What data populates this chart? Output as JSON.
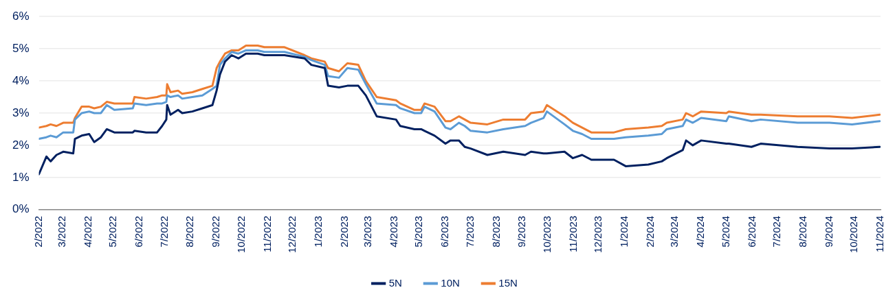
{
  "chart_data": {
    "type": "line",
    "x": [
      "2022-02-01",
      "2022-02-10",
      "2022-02-15",
      "2022-02-22",
      "2022-03-02",
      "2022-03-14",
      "2022-03-16",
      "2022-03-24",
      "2022-04-02",
      "2022-04-08",
      "2022-04-16",
      "2022-04-23",
      "2022-05-02",
      "2022-05-24",
      "2022-05-26",
      "2022-06-09",
      "2022-06-22",
      "2022-06-28",
      "2022-07-03",
      "2022-07-04",
      "2022-07-08",
      "2022-07-17",
      "2022-07-22",
      "2022-08-03",
      "2022-08-15",
      "2022-08-27",
      "2022-09-01",
      "2022-09-05",
      "2022-09-11",
      "2022-09-19",
      "2022-09-27",
      "2022-10-06",
      "2022-10-20",
      "2022-10-28",
      "2022-11-21",
      "2022-12-15",
      "2022-12-23",
      "2023-01-08",
      "2023-01-12",
      "2023-01-25",
      "2023-02-04",
      "2023-02-17",
      "2023-02-26",
      "2023-03-11",
      "2023-04-03",
      "2023-04-08",
      "2023-04-25",
      "2023-05-03",
      "2023-05-07",
      "2023-05-19",
      "2023-06-01",
      "2023-06-07",
      "2023-06-17",
      "2023-06-24",
      "2023-07-01",
      "2023-07-21",
      "2023-08-09",
      "2023-09-04",
      "2023-09-11",
      "2023-09-26",
      "2023-09-30",
      "2023-10-21",
      "2023-10-31",
      "2023-11-11",
      "2023-11-22",
      "2023-12-19",
      "2024-01-02",
      "2024-01-29",
      "2024-02-14",
      "2024-02-20",
      "2024-03-10",
      "2024-03-14",
      "2024-03-22",
      "2024-04-01",
      "2024-05-01",
      "2024-05-04",
      "2024-05-31",
      "2024-06-11",
      "2024-07-25",
      "2024-09-01",
      "2024-09-28",
      "2024-10-31"
    ],
    "series": [
      {
        "name": "5N",
        "color": "#002060",
        "values": [
          1.1,
          1.65,
          1.5,
          1.7,
          1.8,
          1.75,
          2.2,
          2.3,
          2.35,
          2.1,
          2.25,
          2.5,
          2.4,
          2.4,
          2.45,
          2.4,
          2.4,
          2.6,
          2.8,
          3.25,
          2.95,
          3.1,
          3.0,
          3.05,
          3.15,
          3.25,
          3.7,
          4.2,
          4.6,
          4.8,
          4.7,
          4.85,
          4.85,
          4.8,
          4.8,
          4.7,
          4.5,
          4.4,
          3.85,
          3.8,
          3.85,
          3.85,
          3.55,
          2.9,
          2.8,
          2.6,
          2.5,
          2.5,
          2.45,
          2.3,
          2.05,
          2.15,
          2.15,
          1.95,
          1.9,
          1.7,
          1.8,
          1.7,
          1.8,
          1.75,
          1.75,
          1.8,
          1.6,
          1.7,
          1.55,
          1.55,
          1.35,
          1.4,
          1.5,
          1.6,
          1.85,
          2.15,
          2.0,
          2.15,
          2.05,
          2.05,
          1.95,
          2.05,
          1.95,
          1.9,
          1.9,
          1.95
        ]
      },
      {
        "name": "10N",
        "color": "#5b9bd5",
        "values": [
          2.2,
          2.25,
          2.3,
          2.25,
          2.4,
          2.4,
          2.8,
          3.0,
          3.05,
          3.0,
          3.0,
          3.25,
          3.1,
          3.15,
          3.3,
          3.25,
          3.3,
          3.3,
          3.35,
          3.55,
          3.5,
          3.55,
          3.45,
          3.5,
          3.55,
          3.75,
          3.85,
          4.5,
          4.7,
          4.9,
          4.85,
          4.95,
          4.95,
          4.9,
          4.9,
          4.75,
          4.65,
          4.5,
          4.15,
          4.1,
          4.4,
          4.35,
          3.9,
          3.3,
          3.25,
          3.15,
          3.0,
          3.0,
          3.2,
          3.05,
          2.55,
          2.5,
          2.7,
          2.6,
          2.45,
          2.4,
          2.5,
          2.6,
          2.7,
          2.85,
          3.05,
          2.65,
          2.45,
          2.35,
          2.2,
          2.2,
          2.25,
          2.3,
          2.35,
          2.5,
          2.6,
          2.8,
          2.7,
          2.85,
          2.75,
          2.9,
          2.75,
          2.8,
          2.7,
          2.7,
          2.65,
          2.75
        ]
      },
      {
        "name": "15N",
        "color": "#ed7d31",
        "values": [
          2.55,
          2.6,
          2.65,
          2.6,
          2.7,
          2.7,
          2.85,
          3.2,
          3.2,
          3.15,
          3.2,
          3.35,
          3.3,
          3.3,
          3.5,
          3.45,
          3.5,
          3.55,
          3.55,
          3.9,
          3.65,
          3.7,
          3.6,
          3.65,
          3.75,
          3.85,
          4.4,
          4.6,
          4.85,
          4.95,
          4.95,
          5.1,
          5.1,
          5.05,
          5.05,
          4.8,
          4.7,
          4.6,
          4.4,
          4.3,
          4.55,
          4.5,
          4.0,
          3.5,
          3.4,
          3.3,
          3.1,
          3.1,
          3.3,
          3.2,
          2.75,
          2.75,
          2.9,
          2.8,
          2.7,
          2.65,
          2.8,
          2.8,
          3.0,
          3.05,
          3.25,
          2.9,
          2.7,
          2.55,
          2.4,
          2.4,
          2.5,
          2.55,
          2.6,
          2.7,
          2.8,
          3.0,
          2.9,
          3.05,
          3.0,
          3.05,
          2.95,
          2.95,
          2.9,
          2.9,
          2.85,
          2.95
        ]
      }
    ],
    "xlim": [
      "2022-02-01",
      "2024-11-01"
    ],
    "xticks": [
      {
        "value": "2022-02",
        "label": "2/2022"
      },
      {
        "value": "2022-03",
        "label": "3/2022"
      },
      {
        "value": "2022-04",
        "label": "4/2022"
      },
      {
        "value": "2022-05",
        "label": "5/2022"
      },
      {
        "value": "2022-06",
        "label": "6/2022"
      },
      {
        "value": "2022-07",
        "label": "7/2022"
      },
      {
        "value": "2022-08",
        "label": "8/2022"
      },
      {
        "value": "2022-09",
        "label": "9/2022"
      },
      {
        "value": "2022-10",
        "label": "10/2022"
      },
      {
        "value": "2022-11",
        "label": "11/2022"
      },
      {
        "value": "2022-12",
        "label": "12/2022"
      },
      {
        "value": "2023-01",
        "label": "1/2023"
      },
      {
        "value": "2023-02",
        "label": "2/2023"
      },
      {
        "value": "2023-03",
        "label": "3/2023"
      },
      {
        "value": "2023-04",
        "label": "4/2023"
      },
      {
        "value": "2023-05",
        "label": "5/2023"
      },
      {
        "value": "2023-06",
        "label": "6/2023"
      },
      {
        "value": "2023-07",
        "label": "7/2023"
      },
      {
        "value": "2023-08",
        "label": "8/2023"
      },
      {
        "value": "2023-09",
        "label": "9/2023"
      },
      {
        "value": "2023-10",
        "label": "10/2023"
      },
      {
        "value": "2023-11",
        "label": "11/2023"
      },
      {
        "value": "2023-12",
        "label": "12/2023"
      },
      {
        "value": "2024-01",
        "label": "1/2024"
      },
      {
        "value": "2024-02",
        "label": "2/2024"
      },
      {
        "value": "2024-03",
        "label": "3/2024"
      },
      {
        "value": "2024-04",
        "label": "4/2024"
      },
      {
        "value": "2024-05",
        "label": "5/2024"
      },
      {
        "value": "2024-06",
        "label": "6/2024"
      },
      {
        "value": "2024-07",
        "label": "7/2024"
      },
      {
        "value": "2024-08",
        "label": "8/2024"
      },
      {
        "value": "2024-09",
        "label": "9/2024"
      },
      {
        "value": "2024-10",
        "label": "10/2024"
      },
      {
        "value": "2024-11",
        "label": "11/2024"
      }
    ],
    "ylim": [
      0,
      6
    ],
    "yticks": [
      {
        "value": 0,
        "label": "0%"
      },
      {
        "value": 1,
        "label": "1%"
      },
      {
        "value": 2,
        "label": "2%"
      },
      {
        "value": 3,
        "label": "3%"
      },
      {
        "value": 4,
        "label": "4%"
      },
      {
        "value": 5,
        "label": "5%"
      },
      {
        "value": 6,
        "label": "6%"
      }
    ],
    "grid": "y",
    "legend": "bottom",
    "marker": "none",
    "line_style": "solid"
  }
}
